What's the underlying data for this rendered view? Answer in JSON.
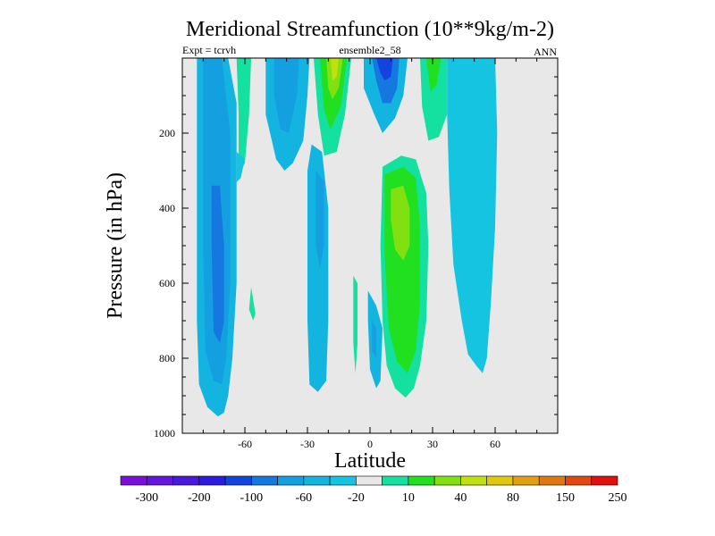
{
  "chart_data": {
    "type": "contour",
    "title": "Meridional Streamfunction (10**9kg/m-2)",
    "subtitle_left": "Expt = tcrvh",
    "subtitle_center": "ensemble2_58",
    "subtitle_right": "ANN",
    "xlabel": "Latitude",
    "ylabel": "Pressure (in hPa)",
    "xlim": [
      -90,
      90
    ],
    "ylim": [
      1000,
      0
    ],
    "x_ticks": [
      -60,
      -30,
      0,
      30,
      60
    ],
    "y_ticks": [
      200,
      400,
      600,
      800,
      1000
    ],
    "background_color": "#e8e8e8",
    "colorbar": {
      "labels": [
        "-300",
        "-200",
        "-100",
        "-60",
        "-20",
        "10",
        "40",
        "80",
        "150",
        "250"
      ],
      "colors": [
        "#7a10d8",
        "#6414dc",
        "#4a18dc",
        "#2c1ce0",
        "#1444e0",
        "#1478e0",
        "#14a0e0",
        "#14b4e0",
        "#14c4e0",
        "#e8e8e8",
        "#14e0a0",
        "#20e020",
        "#80e010",
        "#c0e010",
        "#e0c810",
        "#e0a010",
        "#e07810",
        "#e04810",
        "#e01010"
      ]
    },
    "cells": [
      {
        "name": "sh-polar-cell",
        "color": "#14b4e0",
        "points": [
          [
            -83,
            0
          ],
          [
            -68,
            0
          ],
          [
            -64,
            120
          ],
          [
            -64,
            600
          ],
          [
            -66,
            800
          ],
          [
            -68,
            900
          ],
          [
            -70,
            945
          ],
          [
            -73,
            955
          ],
          [
            -78,
            930
          ],
          [
            -82,
            870
          ],
          [
            -83,
            700
          ],
          [
            -83,
            300
          ]
        ]
      },
      {
        "name": "sh-polar-cell",
        "color": "#14a0e0",
        "points": [
          [
            -80,
            0
          ],
          [
            -71,
            0
          ],
          [
            -67,
            200
          ],
          [
            -67,
            600
          ],
          [
            -69,
            800
          ],
          [
            -71,
            870
          ],
          [
            -75,
            860
          ],
          [
            -79,
            780
          ],
          [
            -80,
            500
          ]
        ]
      },
      {
        "name": "sh-polar-cell",
        "color": "#1478e0",
        "points": [
          [
            -76,
            340
          ],
          [
            -72,
            340
          ],
          [
            -70,
            500
          ],
          [
            -70,
            700
          ],
          [
            -72,
            760
          ],
          [
            -75,
            730
          ],
          [
            -76,
            500
          ]
        ]
      },
      {
        "name": "sh-positive-strip",
        "color": "#14e0a0",
        "points": [
          [
            -64,
            0
          ],
          [
            -57,
            0
          ],
          [
            -58,
            150
          ],
          [
            -60,
            280
          ],
          [
            -63,
            310
          ],
          [
            -63,
            150
          ]
        ]
      },
      {
        "name": "sh-positive-strip",
        "color": "#14c4e0",
        "points": [
          [
            -64,
            250
          ],
          [
            -60,
            270
          ],
          [
            -62,
            320
          ],
          [
            -64,
            330
          ]
        ]
      },
      {
        "name": "sh-positive-blob",
        "color": "#14e0a0",
        "points": [
          [
            -57,
            610
          ],
          [
            -55,
            680
          ],
          [
            -56,
            700
          ],
          [
            -58,
            670
          ]
        ]
      },
      {
        "name": "sh-ferrel-cell",
        "color": "#14b4e0",
        "points": [
          [
            -50,
            0
          ],
          [
            -29,
            0
          ],
          [
            -30,
            100
          ],
          [
            -32,
            220
          ],
          [
            -37,
            280
          ],
          [
            -41,
            300
          ],
          [
            -45,
            270
          ],
          [
            -50,
            150
          ]
        ]
      },
      {
        "name": "sh-ferrel-cell",
        "color": "#14a0e0",
        "points": [
          [
            -46,
            0
          ],
          [
            -34,
            0
          ],
          [
            -35,
            100
          ],
          [
            -39,
            200
          ],
          [
            -43,
            190
          ],
          [
            -46,
            100
          ]
        ]
      },
      {
        "name": "sh-hadley-mid",
        "color": "#14b4e0",
        "points": [
          [
            -28,
            230
          ],
          [
            -23,
            250
          ],
          [
            -20,
            400
          ],
          [
            -20,
            700
          ],
          [
            -21,
            860
          ],
          [
            -25,
            890
          ],
          [
            -29,
            870
          ],
          [
            -30,
            700
          ],
          [
            -30,
            300
          ]
        ]
      },
      {
        "name": "sh-hadley-mid",
        "color": "#14a0e0",
        "points": [
          [
            -26,
            300
          ],
          [
            -22,
            330
          ],
          [
            -22,
            500
          ],
          [
            -24,
            560
          ],
          [
            -26,
            500
          ]
        ]
      },
      {
        "name": "upper-positive-cell",
        "color": "#14e0a0",
        "points": [
          [
            -27,
            0
          ],
          [
            -9,
            0
          ],
          [
            -12,
            150
          ],
          [
            -16,
            250
          ],
          [
            -22,
            260
          ],
          [
            -25,
            150
          ]
        ]
      },
      {
        "name": "upper-positive-cell",
        "color": "#20e020",
        "points": [
          [
            -24,
            0
          ],
          [
            -11,
            0
          ],
          [
            -14,
            130
          ],
          [
            -19,
            190
          ],
          [
            -22,
            140
          ]
        ]
      },
      {
        "name": "upper-positive-cell",
        "color": "#80e010",
        "points": [
          [
            -21,
            0
          ],
          [
            -13,
            0
          ],
          [
            -15,
            80
          ],
          [
            -18,
            110
          ],
          [
            -20,
            80
          ]
        ]
      },
      {
        "name": "upper-positive-cell",
        "color": "#c0e010",
        "points": [
          [
            -19,
            0
          ],
          [
            -15,
            0
          ],
          [
            -16,
            50
          ],
          [
            -18,
            60
          ]
        ]
      },
      {
        "name": "eq-positive-sliver",
        "color": "#14e0a0",
        "points": [
          [
            -8,
            580
          ],
          [
            -6,
            600
          ],
          [
            -6,
            760
          ],
          [
            -7,
            840
          ],
          [
            -8,
            760
          ]
        ]
      },
      {
        "name": "eq-negative-sliver",
        "color": "#14b4e0",
        "points": [
          [
            -1,
            620
          ],
          [
            3,
            660
          ],
          [
            6,
            720
          ],
          [
            5,
            860
          ],
          [
            3,
            880
          ],
          [
            0,
            830
          ],
          [
            -1,
            700
          ]
        ]
      },
      {
        "name": "eq-negative-sliver",
        "color": "#14a0e0",
        "points": [
          [
            1,
            700
          ],
          [
            3,
            720
          ],
          [
            3,
            800
          ],
          [
            1,
            780
          ]
        ]
      },
      {
        "name": "nh-upper-negative",
        "color": "#14b4e0",
        "points": [
          [
            -3,
            0
          ],
          [
            18,
            0
          ],
          [
            16,
            100
          ],
          [
            12,
            160
          ],
          [
            6,
            200
          ],
          [
            2,
            150
          ],
          [
            -3,
            80
          ]
        ]
      },
      {
        "name": "nh-upper-negative",
        "color": "#1478e0",
        "points": [
          [
            1,
            0
          ],
          [
            14,
            0
          ],
          [
            13,
            80
          ],
          [
            10,
            120
          ],
          [
            6,
            120
          ],
          [
            3,
            60
          ]
        ]
      },
      {
        "name": "nh-upper-negative",
        "color": "#1444e0",
        "points": [
          [
            3,
            0
          ],
          [
            11,
            0
          ],
          [
            10,
            50
          ],
          [
            7,
            60
          ],
          [
            5,
            40
          ]
        ]
      },
      {
        "name": "nh-hadley-cell",
        "color": "#14e0a0",
        "points": [
          [
            6,
            290
          ],
          [
            15,
            260
          ],
          [
            22,
            270
          ],
          [
            27,
            360
          ],
          [
            28,
            500
          ],
          [
            27,
            700
          ],
          [
            24,
            820
          ],
          [
            21,
            880
          ],
          [
            17,
            905
          ],
          [
            12,
            880
          ],
          [
            8,
            820
          ],
          [
            6,
            700
          ],
          [
            5,
            500
          ]
        ]
      },
      {
        "name": "nh-hadley-cell",
        "color": "#20e020",
        "points": [
          [
            7,
            310
          ],
          [
            16,
            290
          ],
          [
            22,
            320
          ],
          [
            24,
            450
          ],
          [
            24,
            650
          ],
          [
            22,
            780
          ],
          [
            18,
            840
          ],
          [
            13,
            810
          ],
          [
            9,
            720
          ],
          [
            7,
            520
          ]
        ]
      },
      {
        "name": "nh-hadley-cell",
        "color": "#80e010",
        "points": [
          [
            10,
            350
          ],
          [
            16,
            340
          ],
          [
            19,
            400
          ],
          [
            19,
            500
          ],
          [
            16,
            540
          ],
          [
            12,
            510
          ],
          [
            10,
            430
          ]
        ]
      },
      {
        "name": "nh-upper-positive",
        "color": "#14e0a0",
        "points": [
          [
            24,
            0
          ],
          [
            37,
            0
          ],
          [
            37,
            150
          ],
          [
            33,
            210
          ],
          [
            28,
            220
          ],
          [
            25,
            130
          ]
        ]
      },
      {
        "name": "nh-upper-positive",
        "color": "#20e020",
        "points": [
          [
            27,
            0
          ],
          [
            34,
            0
          ],
          [
            32,
            70
          ],
          [
            29,
            90
          ]
        ]
      },
      {
        "name": "nh-ferrel-negative",
        "color": "#14c4e0",
        "points": [
          [
            37,
            0
          ],
          [
            60,
            0
          ],
          [
            61,
            200
          ],
          [
            60,
            450
          ],
          [
            58,
            650
          ],
          [
            56,
            800
          ],
          [
            54,
            840
          ],
          [
            51,
            820
          ],
          [
            47,
            790
          ],
          [
            44,
            700
          ],
          [
            40,
            550
          ],
          [
            38,
            350
          ],
          [
            37,
            150
          ]
        ]
      }
    ]
  }
}
